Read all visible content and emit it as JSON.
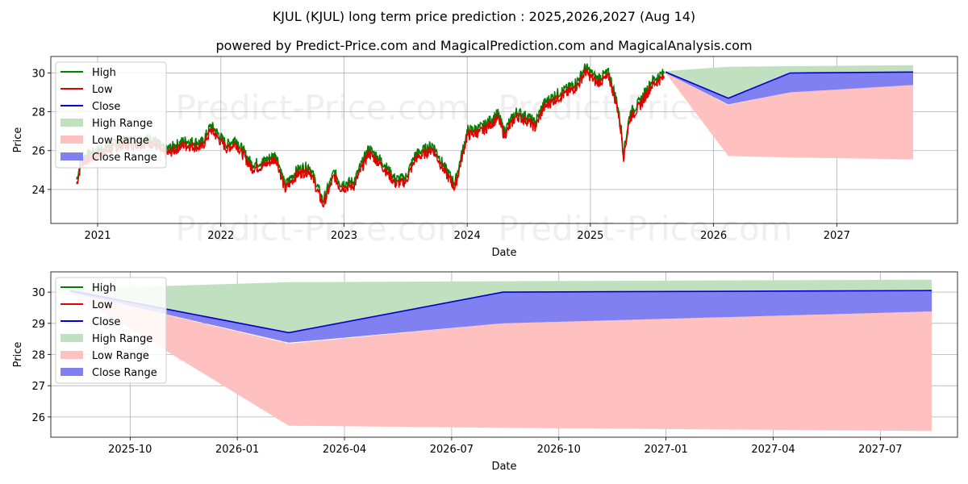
{
  "title": "KJUL (KJUL) long term price prediction : 2025,2026,2027 (Aug 14)",
  "subtitle": "powered by Predict-Price.com and MagicalPrediction.com and MagicalAnalysis.com",
  "watermark": "Predict-Price.com",
  "colors": {
    "high": "#008000",
    "low": "#e00000",
    "close": "#0000cc",
    "high_range": "#c0e0c0",
    "low_range": "#ffc0c0",
    "close_range": "#8080f0",
    "grid": "#b0b0b0"
  },
  "legend": [
    "High",
    "Low",
    "Close",
    "High Range",
    "Low Range",
    "Close Range"
  ],
  "chart_data": [
    {
      "type": "line",
      "xlabel": "Date",
      "ylabel": "Price",
      "xlim": [
        2020.62,
        2027.98
      ],
      "ylim": [
        22.25,
        30.85
      ],
      "xticks": [
        2021,
        2022,
        2023,
        2024,
        2025,
        2026,
        2027
      ],
      "xtick_labels": [
        "2021",
        "2022",
        "2023",
        "2024",
        "2025",
        "2026",
        "2027"
      ],
      "yticks": [
        24,
        26,
        28,
        30
      ],
      "history_anchor": {
        "t": [
          2020.83,
          2020.87,
          2021.0,
          2021.2,
          2021.45,
          2021.55,
          2021.7,
          2021.85,
          2021.92,
          2022.05,
          2022.12,
          2022.25,
          2022.33,
          2022.45,
          2022.52,
          2022.62,
          2022.72,
          2022.83,
          2022.92,
          2022.97,
          2023.08,
          2023.2,
          2023.3,
          2023.42,
          2023.5,
          2023.58,
          2023.72,
          2023.82,
          2023.9,
          2024.0,
          2024.12,
          2024.25,
          2024.3,
          2024.4,
          2024.5,
          2024.55,
          2024.62,
          2024.72,
          2024.82,
          2024.9,
          2024.96,
          2025.05,
          2025.15,
          2025.22,
          2025.25,
          2025.27,
          2025.32,
          2025.4,
          2025.5,
          2025.6
        ],
        "v": [
          24.4,
          25.5,
          25.9,
          26.4,
          26.5,
          25.9,
          26.4,
          26.3,
          27.2,
          26.2,
          26.5,
          25.2,
          25.3,
          25.7,
          24.1,
          24.9,
          25.1,
          23.3,
          24.8,
          24.2,
          24.3,
          26.0,
          25.4,
          24.4,
          24.5,
          25.7,
          26.2,
          25.0,
          24.2,
          26.9,
          27.1,
          27.8,
          26.9,
          27.9,
          27.6,
          27.3,
          28.3,
          28.8,
          29.1,
          29.5,
          30.2,
          29.6,
          29.9,
          28.3,
          27.0,
          25.8,
          27.8,
          28.4,
          29.5,
          29.9
        ]
      },
      "high_range": {
        "x": [
          2025.61,
          2026.12,
          2026.62,
          2027.62
        ],
        "low": [
          29.95,
          28.7,
          30.0,
          30.05
        ],
        "high": [
          30.1,
          30.32,
          30.35,
          30.4
        ]
      },
      "low_range": {
        "x": [
          2025.61,
          2026.12,
          2026.62,
          2027.62
        ],
        "low": [
          30.0,
          25.72,
          25.65,
          25.55
        ],
        "high": [
          30.0,
          28.35,
          29.0,
          29.38
        ]
      },
      "close_range": {
        "x": [
          2025.61,
          2026.12,
          2026.62,
          2027.62
        ],
        "low": [
          30.0,
          28.38,
          29.0,
          29.38
        ],
        "high": [
          30.05,
          28.7,
          30.0,
          30.05
        ]
      },
      "close_line": {
        "x": [
          2025.61,
          2026.12,
          2026.62,
          2027.62
        ],
        "y": [
          30.05,
          28.7,
          30.0,
          30.05
        ]
      }
    },
    {
      "type": "area",
      "xlabel": "Date",
      "ylabel": "Price",
      "xlim": [
        2025.565,
        2027.68
      ],
      "ylim": [
        25.35,
        30.65
      ],
      "xticks": [
        2025.75,
        2026.0,
        2026.25,
        2026.5,
        2026.75,
        2027.0,
        2027.25,
        2027.5
      ],
      "xtick_labels": [
        "2025-10",
        "2026-01",
        "2026-04",
        "2026-07",
        "2026-10",
        "2027-01",
        "2027-04",
        "2027-07"
      ],
      "yticks": [
        26,
        27,
        28,
        29,
        30
      ],
      "high_range": {
        "x": [
          2025.61,
          2026.12,
          2026.62,
          2027.62
        ],
        "low": [
          29.95,
          28.7,
          30.0,
          30.05
        ],
        "high": [
          30.1,
          30.32,
          30.35,
          30.4
        ]
      },
      "low_range": {
        "x": [
          2025.61,
          2026.12,
          2026.62,
          2027.62
        ],
        "low": [
          30.0,
          25.72,
          25.65,
          25.55
        ],
        "high": [
          30.0,
          28.35,
          29.0,
          29.38
        ]
      },
      "close_range": {
        "x": [
          2025.61,
          2026.12,
          2026.62,
          2027.62
        ],
        "low": [
          30.0,
          28.38,
          29.0,
          29.38
        ],
        "high": [
          30.05,
          28.7,
          30.0,
          30.05
        ]
      },
      "close_line": {
        "x": [
          2025.61,
          2026.12,
          2026.62,
          2027.62
        ],
        "y": [
          30.05,
          28.7,
          30.0,
          30.05
        ]
      }
    }
  ]
}
